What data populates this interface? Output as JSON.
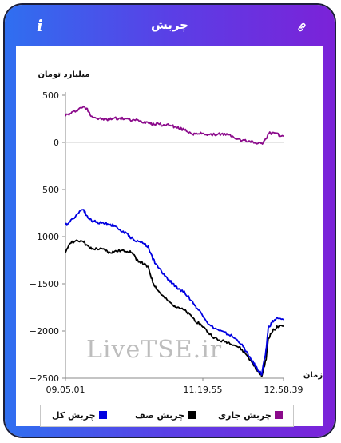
{
  "header": {
    "title": "چربش",
    "info_icon": "info-icon",
    "link_icon": "link-icon"
  },
  "watermark": "LiveTSE.ir",
  "chart_data": {
    "type": "line",
    "ylabel": "میلیارد تومان",
    "xlabel": "زمان",
    "ylim": [
      -2500,
      500
    ],
    "yticks": [
      500,
      0,
      -500,
      -1000,
      -1500,
      -2000,
      -2500
    ],
    "ytick_labels": [
      "500",
      "0",
      "−500",
      "−1000",
      "−1500",
      "−2000",
      "−2500"
    ],
    "xticks": [
      "09.05.01",
      "11.19.55",
      "12.58.39"
    ],
    "grid": false,
    "legend_position": "bottom",
    "x": [
      0,
      0.02,
      0.05,
      0.08,
      0.1,
      0.12,
      0.15,
      0.18,
      0.2,
      0.22,
      0.25,
      0.28,
      0.3,
      0.33,
      0.36,
      0.38,
      0.4,
      0.42,
      0.45,
      0.48,
      0.5,
      0.52,
      0.55,
      0.58,
      0.6,
      0.63,
      0.66,
      0.7,
      0.73,
      0.76,
      0.8,
      0.83,
      0.86,
      0.88,
      0.9,
      0.92,
      0.93,
      0.95,
      0.97,
      1.0
    ],
    "series": [
      {
        "name": "چربش جاری",
        "color": "#8b0a8b",
        "values": [
          290,
          300,
          340,
          380,
          350,
          280,
          250,
          245,
          240,
          260,
          250,
          255,
          235,
          235,
          215,
          220,
          190,
          200,
          180,
          190,
          165,
          150,
          130,
          95,
          85,
          100,
          75,
          90,
          85,
          70,
          25,
          15,
          5,
          -5,
          -10,
          30,
          95,
          100,
          85,
          65
        ]
      },
      {
        "name": "چربش صف",
        "color": "#000000",
        "values": [
          -1180,
          -1060,
          -1050,
          -1040,
          -1100,
          -1130,
          -1130,
          -1140,
          -1170,
          -1160,
          -1150,
          -1150,
          -1160,
          -1250,
          -1290,
          -1330,
          -1480,
          -1560,
          -1640,
          -1700,
          -1730,
          -1750,
          -1790,
          -1850,
          -1900,
          -1950,
          -2030,
          -2100,
          -2110,
          -2130,
          -2180,
          -2250,
          -2350,
          -2420,
          -2480,
          -2300,
          -2080,
          -2000,
          -1960,
          -1950
        ]
      },
      {
        "name": "چربش کل",
        "color": "#0000e0",
        "values": [
          -880,
          -840,
          -770,
          -700,
          -790,
          -830,
          -850,
          -860,
          -870,
          -880,
          -930,
          -970,
          -1010,
          -1050,
          -1070,
          -1110,
          -1230,
          -1310,
          -1400,
          -1470,
          -1520,
          -1550,
          -1600,
          -1680,
          -1750,
          -1830,
          -1940,
          -1990,
          -2020,
          -2050,
          -2120,
          -2220,
          -2330,
          -2400,
          -2460,
          -2200,
          -1970,
          -1900,
          -1870,
          -1880
        ]
      }
    ]
  }
}
